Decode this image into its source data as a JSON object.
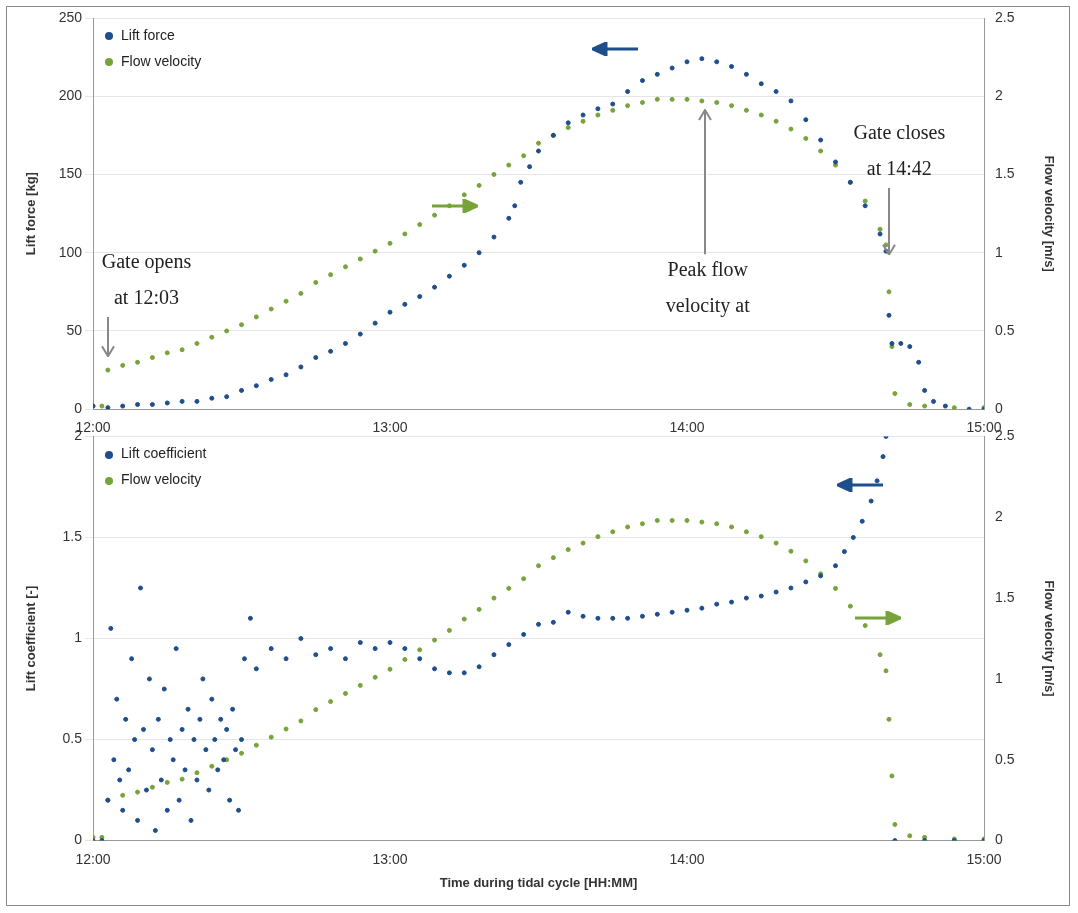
{
  "chart_data": [
    {
      "type": "scatter",
      "ylabel": "Lift force [kg]",
      "y2label": "Flow velocity [m/s]",
      "xlim": [
        12,
        15
      ],
      "xticks": [
        {
          "value": 12,
          "label": "12:00"
        },
        {
          "value": 13,
          "label": "13:00"
        },
        {
          "value": 14,
          "label": "14:00"
        },
        {
          "value": 15,
          "label": "15:00"
        }
      ],
      "ylim": [
        0,
        250
      ],
      "yticks": [
        0,
        50,
        100,
        150,
        200,
        250
      ],
      "y2lim": [
        0,
        2.5
      ],
      "y2ticks": [
        0,
        0.5,
        1,
        1.5,
        2,
        2.5
      ],
      "grid": "y",
      "legend": "top left",
      "marker": "circle",
      "series": [
        {
          "name": "Lift force",
          "color": "#1f4e8c",
          "x": [
            12.0,
            12.05,
            12.1,
            12.15,
            12.2,
            12.25,
            12.3,
            12.35,
            12.4,
            12.45,
            12.5,
            12.55,
            12.6,
            12.65,
            12.7,
            12.75,
            12.8,
            12.85,
            12.9,
            12.95,
            13.0,
            13.05,
            13.1,
            13.15,
            13.2,
            13.25,
            13.3,
            13.35,
            13.4,
            13.42,
            13.44,
            13.47,
            13.5,
            13.55,
            13.6,
            13.65,
            13.7,
            13.75,
            13.8,
            13.85,
            13.9,
            13.95,
            14.0,
            14.05,
            14.1,
            14.15,
            14.2,
            14.25,
            14.3,
            14.35,
            14.4,
            14.45,
            14.5,
            14.55,
            14.6,
            14.65,
            14.67,
            14.68,
            14.69,
            14.72,
            14.75,
            14.78,
            14.8,
            14.83,
            14.87,
            14.95,
            15.0
          ],
          "values": [
            2,
            1,
            2,
            3,
            3,
            4,
            5,
            5,
            7,
            8,
            12,
            15,
            19,
            22,
            27,
            33,
            37,
            42,
            48,
            55,
            62,
            67,
            72,
            78,
            85,
            92,
            100,
            110,
            122,
            130,
            145,
            155,
            165,
            175,
            183,
            188,
            192,
            195,
            203,
            210,
            214,
            218,
            222,
            224,
            222,
            219,
            214,
            208,
            203,
            197,
            185,
            172,
            158,
            145,
            130,
            112,
            101,
            60,
            42,
            42,
            40,
            30,
            12,
            5,
            2,
            0,
            0
          ]
        },
        {
          "name": "Flow velocity",
          "color": "#77a33a",
          "axis": "y2",
          "x": [
            12.0,
            12.03,
            12.05,
            12.1,
            12.15,
            12.2,
            12.25,
            12.3,
            12.35,
            12.4,
            12.45,
            12.5,
            12.55,
            12.6,
            12.65,
            12.7,
            12.75,
            12.8,
            12.85,
            12.9,
            12.95,
            13.0,
            13.05,
            13.1,
            13.15,
            13.2,
            13.25,
            13.3,
            13.35,
            13.4,
            13.45,
            13.5,
            13.55,
            13.6,
            13.65,
            13.7,
            13.75,
            13.8,
            13.85,
            13.9,
            13.95,
            14.0,
            14.05,
            14.1,
            14.15,
            14.2,
            14.25,
            14.3,
            14.35,
            14.4,
            14.45,
            14.5,
            14.55,
            14.6,
            14.65,
            14.67,
            14.68,
            14.69,
            14.7,
            14.75,
            14.8,
            14.9,
            15.0
          ],
          "values": [
            0.02,
            0.02,
            0.25,
            0.28,
            0.3,
            0.33,
            0.36,
            0.38,
            0.42,
            0.46,
            0.5,
            0.54,
            0.59,
            0.64,
            0.69,
            0.74,
            0.81,
            0.86,
            0.91,
            0.96,
            1.01,
            1.06,
            1.12,
            1.18,
            1.24,
            1.3,
            1.37,
            1.43,
            1.5,
            1.56,
            1.62,
            1.7,
            1.75,
            1.8,
            1.84,
            1.88,
            1.91,
            1.94,
            1.96,
            1.98,
            1.98,
            1.98,
            1.97,
            1.96,
            1.94,
            1.91,
            1.88,
            1.84,
            1.79,
            1.73,
            1.65,
            1.56,
            1.45,
            1.33,
            1.15,
            1.05,
            0.75,
            0.4,
            0.1,
            0.03,
            0.02,
            0.01,
            0.01
          ]
        }
      ],
      "annotations": [
        "Gate opens at 12:03",
        "Peak flow velocity at",
        "Gate closes at 14:42"
      ]
    },
    {
      "type": "scatter",
      "xlabel": "Time during tidal cycle [HH:MM]",
      "ylabel": "Lift coefficient [-]",
      "y2label": "Flow velocity [m/s]",
      "xlim": [
        12,
        15
      ],
      "xticks": [
        {
          "value": 12,
          "label": "12:00"
        },
        {
          "value": 13,
          "label": "13:00"
        },
        {
          "value": 14,
          "label": "14:00"
        },
        {
          "value": 15,
          "label": "15:00"
        }
      ],
      "ylim": [
        0,
        2
      ],
      "yticks": [
        0,
        0.5,
        1,
        1.5,
        2
      ],
      "y2lim": [
        0,
        2.5
      ],
      "y2ticks": [
        0,
        0.5,
        1,
        1.5,
        2,
        2.5
      ],
      "grid": "y",
      "legend": "top left",
      "marker": "circle",
      "series": [
        {
          "name": "Lift coefficient",
          "color": "#1f4e8c",
          "x": [
            12.0,
            12.03,
            12.05,
            12.06,
            12.07,
            12.08,
            12.09,
            12.1,
            12.11,
            12.12,
            12.13,
            12.14,
            12.15,
            12.16,
            12.17,
            12.18,
            12.19,
            12.2,
            12.21,
            12.22,
            12.23,
            12.24,
            12.25,
            12.26,
            12.27,
            12.28,
            12.29,
            12.3,
            12.31,
            12.32,
            12.33,
            12.34,
            12.35,
            12.36,
            12.37,
            12.38,
            12.39,
            12.4,
            12.41,
            12.42,
            12.43,
            12.44,
            12.45,
            12.46,
            12.47,
            12.48,
            12.49,
            12.5,
            12.51,
            12.53,
            12.55,
            12.6,
            12.65,
            12.7,
            12.75,
            12.8,
            12.85,
            12.9,
            12.95,
            13.0,
            13.05,
            13.1,
            13.15,
            13.2,
            13.25,
            13.3,
            13.35,
            13.4,
            13.45,
            13.5,
            13.55,
            13.6,
            13.65,
            13.7,
            13.75,
            13.8,
            13.85,
            13.9,
            13.95,
            14.0,
            14.05,
            14.1,
            14.15,
            14.2,
            14.25,
            14.3,
            14.35,
            14.4,
            14.45,
            14.5,
            14.53,
            14.56,
            14.59,
            14.62,
            14.64,
            14.66,
            14.67,
            14.7,
            14.8,
            14.9,
            15.0
          ],
          "values": [
            0,
            0,
            0.2,
            1.05,
            0.4,
            0.7,
            0.3,
            0.15,
            0.6,
            0.35,
            0.9,
            0.5,
            0.1,
            1.25,
            0.55,
            0.25,
            0.8,
            0.45,
            0.05,
            0.6,
            0.3,
            0.75,
            0.15,
            0.5,
            0.4,
            0.95,
            0.2,
            0.55,
            0.35,
            0.65,
            0.1,
            0.5,
            0.3,
            0.6,
            0.8,
            0.45,
            0.25,
            0.7,
            0.5,
            0.35,
            0.6,
            0.4,
            0.55,
            0.2,
            0.65,
            0.45,
            0.15,
            0.5,
            0.9,
            1.1,
            0.85,
            0.95,
            0.9,
            1.0,
            0.92,
            0.95,
            0.9,
            0.98,
            0.95,
            0.98,
            0.95,
            0.9,
            0.85,
            0.83,
            0.83,
            0.86,
            0.92,
            0.97,
            1.02,
            1.07,
            1.08,
            1.13,
            1.11,
            1.1,
            1.1,
            1.1,
            1.11,
            1.12,
            1.13,
            1.14,
            1.15,
            1.17,
            1.18,
            1.2,
            1.21,
            1.23,
            1.25,
            1.28,
            1.31,
            1.36,
            1.43,
            1.5,
            1.58,
            1.68,
            1.78,
            1.9,
            2.0,
            0,
            0,
            0,
            0
          ]
        },
        {
          "name": "Flow velocity",
          "color": "#77a33a",
          "axis": "y2",
          "x": [
            12.0,
            12.03,
            12.05,
            12.1,
            12.15,
            12.2,
            12.25,
            12.3,
            12.35,
            12.4,
            12.45,
            12.5,
            12.55,
            12.6,
            12.65,
            12.7,
            12.75,
            12.8,
            12.85,
            12.9,
            12.95,
            13.0,
            13.05,
            13.1,
            13.15,
            13.2,
            13.25,
            13.3,
            13.35,
            13.4,
            13.45,
            13.5,
            13.55,
            13.6,
            13.65,
            13.7,
            13.75,
            13.8,
            13.85,
            13.9,
            13.95,
            14.0,
            14.05,
            14.1,
            14.15,
            14.2,
            14.25,
            14.3,
            14.35,
            14.4,
            14.45,
            14.5,
            14.55,
            14.6,
            14.65,
            14.67,
            14.68,
            14.69,
            14.7,
            14.75,
            14.8,
            14.9,
            15.0
          ],
          "values": [
            0.02,
            0.02,
            0.25,
            0.28,
            0.3,
            0.33,
            0.36,
            0.38,
            0.42,
            0.46,
            0.5,
            0.54,
            0.59,
            0.64,
            0.69,
            0.74,
            0.81,
            0.86,
            0.91,
            0.96,
            1.01,
            1.06,
            1.12,
            1.18,
            1.24,
            1.3,
            1.37,
            1.43,
            1.5,
            1.56,
            1.62,
            1.7,
            1.75,
            1.8,
            1.84,
            1.88,
            1.91,
            1.94,
            1.96,
            1.98,
            1.98,
            1.98,
            1.97,
            1.96,
            1.94,
            1.91,
            1.88,
            1.84,
            1.79,
            1.73,
            1.65,
            1.56,
            1.45,
            1.33,
            1.15,
            1.05,
            0.75,
            0.4,
            0.1,
            0.03,
            0.02,
            0.01,
            0.01
          ]
        }
      ]
    }
  ]
}
